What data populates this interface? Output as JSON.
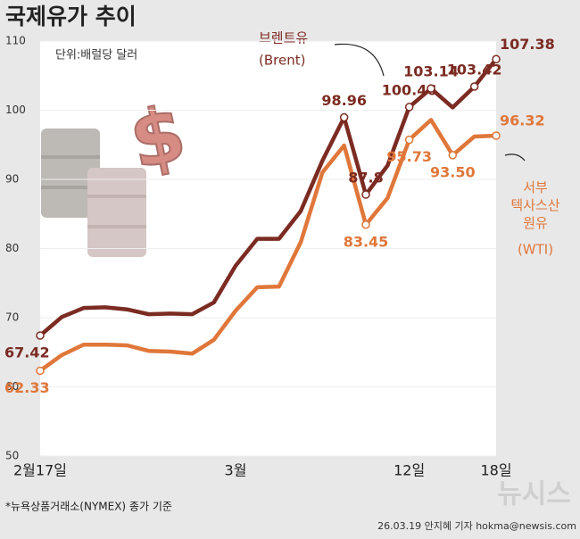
{
  "chart_data": {
    "type": "line",
    "title": "국제유가 추이",
    "subtitle": "단위:배럴당 달러",
    "categories": [
      "2월17일",
      null,
      null,
      null,
      null,
      null,
      null,
      null,
      null,
      "3월",
      null,
      null,
      null,
      null,
      null,
      null,
      null,
      "12일",
      null,
      null,
      null,
      "18일"
    ],
    "series": [
      {
        "name": "브렌트유",
        "name_sub": "(Brent)",
        "color": "#7b2b22",
        "values": [
          67.42,
          70.1,
          71.4,
          71.5,
          71.2,
          70.5,
          70.6,
          70.5,
          72.2,
          77.5,
          81.4,
          81.4,
          85.4,
          92.7,
          98.96,
          87.8,
          92.0,
          100.46,
          103.14,
          100.4,
          103.42,
          107.38
        ],
        "value_labels": [
          "67.42",
          null,
          null,
          null,
          null,
          null,
          null,
          null,
          null,
          null,
          null,
          null,
          null,
          null,
          "98.96",
          "87.8",
          null,
          "100.46",
          "103.14",
          null,
          "103.42",
          "107.38"
        ]
      },
      {
        "name": "서부 텍사스산 원유",
        "name_sub": "(WTI)",
        "color": "#e0773a",
        "values": [
          62.33,
          64.6,
          66.1,
          66.1,
          66.0,
          65.2,
          65.1,
          64.8,
          66.8,
          71.0,
          74.4,
          74.5,
          80.9,
          91.0,
          94.9,
          83.45,
          87.3,
          95.73,
          98.6,
          93.5,
          96.2,
          96.32
        ],
        "value_labels": [
          "62.33",
          null,
          null,
          null,
          null,
          null,
          null,
          null,
          null,
          null,
          null,
          null,
          null,
          null,
          null,
          "83.45",
          null,
          "95.73",
          null,
          "93.50",
          null,
          "96.32"
        ]
      }
    ],
    "ylim": [
      50,
      110
    ],
    "yticks": [
      50,
      60,
      70,
      80,
      90,
      100,
      110
    ],
    "grid": true,
    "footnote": "*뉴욕상품거래소(NYMEX) 종가 기준",
    "credit": "26.03.19 안지혜 기자 hokma@newsis.com",
    "watermark": "뉴시스"
  }
}
